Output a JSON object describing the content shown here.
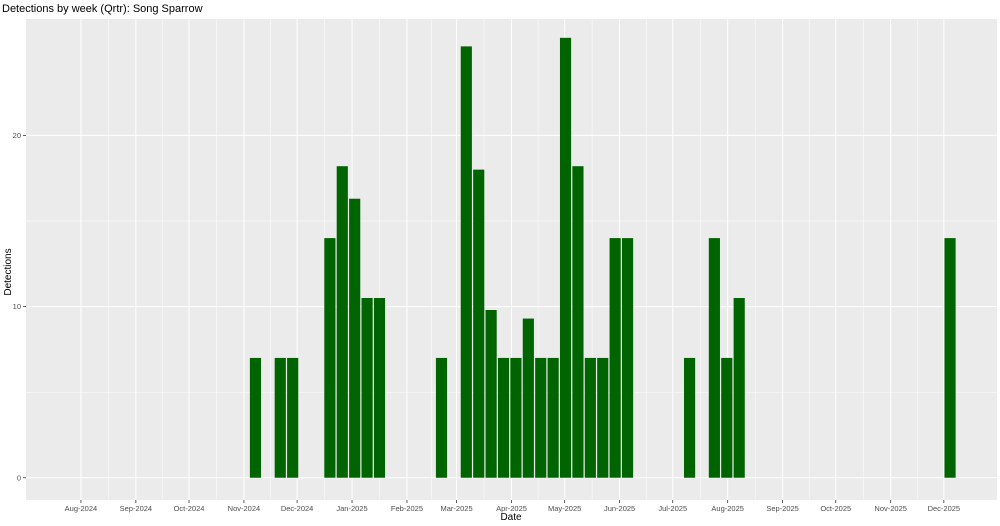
{
  "chart_data": {
    "type": "bar",
    "title": "Detections by week (Qrtr): Song Sparrow",
    "xlabel": "Date",
    "ylabel": "Detections",
    "x_axis_type": "date",
    "xlim": [
      "2024-07-01",
      "2025-12-31"
    ],
    "ylim": [
      -1.3,
      26.8
    ],
    "y_ticks": [
      0,
      10,
      20
    ],
    "x_ticks": [
      {
        "date": "2024-08-01",
        "label": "Aug-2024"
      },
      {
        "date": "2024-09-01",
        "label": "Sep-2024"
      },
      {
        "date": "2024-10-01",
        "label": "Oct-2024"
      },
      {
        "date": "2024-11-01",
        "label": "Nov-2024"
      },
      {
        "date": "2024-12-01",
        "label": "Dec-2024"
      },
      {
        "date": "2025-01-01",
        "label": "Jan-2025"
      },
      {
        "date": "2025-02-01",
        "label": "Feb-2025"
      },
      {
        "date": "2025-03-01",
        "label": "Mar-2025"
      },
      {
        "date": "2025-04-01",
        "label": "Apr-2025"
      },
      {
        "date": "2025-05-01",
        "label": "May-2025"
      },
      {
        "date": "2025-06-01",
        "label": "Jun-2025"
      },
      {
        "date": "2025-07-01",
        "label": "Jul-2025"
      },
      {
        "date": "2025-08-01",
        "label": "Aug-2025"
      },
      {
        "date": "2025-09-01",
        "label": "Sep-2025"
      },
      {
        "date": "2025-10-01",
        "label": "Oct-2025"
      },
      {
        "date": "2025-11-01",
        "label": "Nov-2025"
      },
      {
        "date": "2025-12-01",
        "label": "Dec-2025"
      }
    ],
    "bar_color": "#006400",
    "panel_color": "#ebebeb",
    "grid_color": "#ffffff",
    "grid": true,
    "legend": "none",
    "bars": [
      {
        "week": "2024-11-04",
        "value": 7
      },
      {
        "week": "2024-11-18",
        "value": 7
      },
      {
        "week": "2024-11-25",
        "value": 7
      },
      {
        "week": "2024-12-16",
        "value": 14
      },
      {
        "week": "2024-12-23",
        "value": 18.2
      },
      {
        "week": "2024-12-30",
        "value": 16.3
      },
      {
        "week": "2025-01-06",
        "value": 10.5
      },
      {
        "week": "2025-01-13",
        "value": 10.5
      },
      {
        "week": "2025-02-17",
        "value": 7
      },
      {
        "week": "2025-03-03",
        "value": 25.2
      },
      {
        "week": "2025-03-10",
        "value": 18
      },
      {
        "week": "2025-03-17",
        "value": 9.8
      },
      {
        "week": "2025-03-24",
        "value": 7
      },
      {
        "week": "2025-03-31",
        "value": 7
      },
      {
        "week": "2025-04-07",
        "value": 9.3
      },
      {
        "week": "2025-04-14",
        "value": 7
      },
      {
        "week": "2025-04-21",
        "value": 7
      },
      {
        "week": "2025-04-28",
        "value": 25.7
      },
      {
        "week": "2025-05-05",
        "value": 18.2
      },
      {
        "week": "2025-05-12",
        "value": 7
      },
      {
        "week": "2025-05-19",
        "value": 7
      },
      {
        "week": "2025-05-26",
        "value": 14
      },
      {
        "week": "2025-06-02",
        "value": 14
      },
      {
        "week": "2025-07-07",
        "value": 7
      },
      {
        "week": "2025-07-21",
        "value": 14
      },
      {
        "week": "2025-07-28",
        "value": 7
      },
      {
        "week": "2025-08-04",
        "value": 10.5
      },
      {
        "week": "2025-12-01",
        "value": 14
      }
    ]
  }
}
